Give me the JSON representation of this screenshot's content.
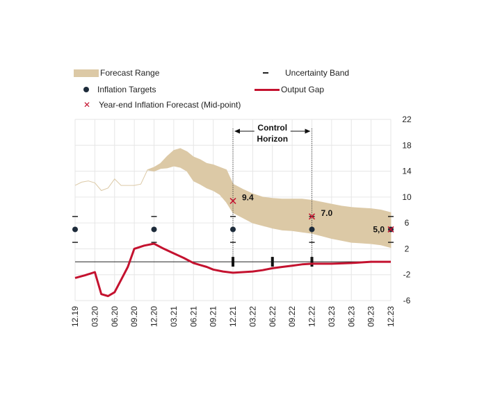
{
  "legend": {
    "forecast_range": "Forecast Range",
    "inflation_targets": "Inflation Targets",
    "year_end_forecast": "Year-end Inflation Forecast (Mid-point)",
    "uncertainty_band": "Uncertainty Band",
    "output_gap": "Output Gap"
  },
  "chart_data": {
    "type": "line",
    "categories": [
      "12.19",
      "03.20",
      "06.20",
      "09.20",
      "12.20",
      "03.21",
      "06.21",
      "09.21",
      "12.21",
      "03.22",
      "06.22",
      "09.22",
      "12.22",
      "03.23",
      "06.23",
      "09.23",
      "12.23"
    ],
    "ylim": [
      -6,
      22
    ],
    "yticks": [
      -6,
      -2,
      2,
      6,
      10,
      14,
      18,
      22
    ],
    "grid": true,
    "colors": {
      "band": "#dcc9a6",
      "output_gap": "#c4122f",
      "target": "#1d2b3a",
      "forecast_marker": "#c4122f"
    },
    "forecast_band": {
      "x": [
        0,
        0.33,
        0.67,
        1,
        1.33,
        1.67,
        2,
        2.33,
        2.67,
        3,
        3.33,
        3.67,
        4,
        4.33,
        4.67,
        5,
        5.33,
        5.67,
        6,
        6.33,
        6.67,
        7,
        7.33,
        7.67,
        8,
        8.5,
        9,
        9.5,
        10,
        10.5,
        11,
        11.5,
        12,
        12.5,
        13,
        13.5,
        14,
        14.5,
        15,
        15.5,
        16
      ],
      "upper": [
        11.8,
        12.3,
        12.5,
        12.2,
        11.0,
        11.4,
        12.8,
        11.8,
        11.8,
        11.8,
        12.0,
        14.2,
        14.6,
        15.2,
        16.3,
        17.2,
        17.5,
        17.0,
        16.2,
        15.8,
        15.2,
        15.0,
        14.6,
        14.2,
        12.0,
        11.2,
        10.5,
        10.0,
        9.8,
        9.7,
        9.7,
        9.7,
        9.5,
        9.2,
        8.9,
        8.6,
        8.4,
        8.3,
        8.2,
        8.0,
        7.6
      ],
      "lower": [
        11.8,
        12.3,
        12.5,
        12.2,
        11.0,
        11.4,
        12.8,
        11.8,
        11.8,
        11.8,
        12.0,
        14.2,
        14.0,
        14.4,
        14.5,
        14.8,
        14.6,
        14.0,
        12.5,
        12.0,
        11.4,
        11.0,
        10.4,
        9.2,
        7.6,
        6.8,
        6.0,
        5.6,
        5.2,
        4.9,
        4.8,
        4.6,
        4.4,
        4.0,
        3.6,
        3.3,
        3.0,
        2.9,
        2.8,
        2.6,
        2.2
      ]
    },
    "output_gap": {
      "x": [
        0,
        0.5,
        1,
        1.33,
        1.67,
        2,
        2.33,
        2.67,
        3,
        3.5,
        4,
        4.5,
        5,
        5.5,
        6,
        6.33,
        6.67,
        7,
        7.5,
        8,
        8.5,
        9,
        9.5,
        10,
        10.5,
        11,
        11.5,
        12,
        13,
        14,
        14.5,
        15,
        16
      ],
      "values": [
        -2.5,
        -2.1,
        -1.6,
        -5.0,
        -5.3,
        -4.7,
        -2.8,
        -0.8,
        2.0,
        2.5,
        2.8,
        2.0,
        1.3,
        0.6,
        -0.2,
        -0.5,
        -0.8,
        -1.2,
        -1.5,
        -1.7,
        -1.6,
        -1.5,
        -1.3,
        -1.0,
        -0.8,
        -0.6,
        -0.4,
        -0.3,
        -0.3,
        -0.2,
        -0.1,
        0.0,
        0.0
      ]
    },
    "inflation_targets": {
      "x": [
        0,
        4,
        8,
        12,
        16
      ],
      "values": [
        5,
        5,
        5,
        5,
        5
      ],
      "uncertainty_band": [
        3,
        7
      ]
    },
    "output_gap_markers_x": [
      8,
      10,
      12
    ],
    "year_end_forecasts": [
      {
        "x": 8,
        "value": 9.4,
        "label": "9.4"
      },
      {
        "x": 12,
        "value": 7.0,
        "label": "7.0"
      },
      {
        "x": 16,
        "value": 5.0,
        "label": "5,0"
      }
    ],
    "control_horizon": {
      "start_x": 8,
      "end_x": 12,
      "label_line1": "Control",
      "label_line2": "Horizon"
    }
  }
}
